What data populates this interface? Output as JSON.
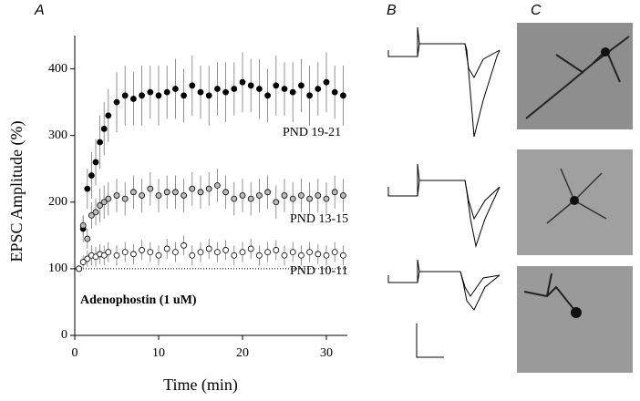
{
  "chart_data": {
    "type": "scatter",
    "panel_labels": [
      "A",
      "B",
      "C"
    ],
    "x_label": "Time (min)",
    "y_label": "EPSC Amplitude (%)",
    "annotations": [
      "PND 19-21",
      "PND 13-15",
      "PND 10-11",
      "Adenophostin (1 uM)"
    ],
    "x": [
      0.5,
      1,
      1.5,
      2,
      2.5,
      3,
      3.5,
      4,
      5,
      6,
      7,
      8,
      9,
      10,
      11,
      12,
      13,
      14,
      15,
      16,
      17,
      18,
      19,
      20,
      21,
      22,
      23,
      24,
      25,
      26,
      27,
      28,
      29,
      30,
      31,
      32
    ],
    "series": [
      {
        "name": "PND 19-21",
        "color": "#000000",
        "values": [
          100,
          160,
          220,
          240,
          260,
          290,
          310,
          330,
          350,
          360,
          355,
          360,
          365,
          360,
          365,
          370,
          360,
          375,
          365,
          360,
          370,
          365,
          370,
          380,
          375,
          370,
          360,
          375,
          370,
          365,
          375,
          360,
          370,
          380,
          365,
          360
        ],
        "errors": [
          5,
          20,
          30,
          35,
          35,
          40,
          40,
          40,
          45,
          45,
          40,
          45,
          40,
          45,
          40,
          45,
          40,
          45,
          40,
          45,
          40,
          45,
          40,
          45,
          40,
          45,
          40,
          45,
          40,
          45,
          40,
          45,
          40,
          45,
          40,
          45
        ]
      },
      {
        "name": "PND 13-15",
        "color": "#bbbbbb",
        "values": [
          100,
          165,
          145,
          180,
          185,
          195,
          200,
          205,
          210,
          205,
          215,
          210,
          220,
          210,
          215,
          215,
          210,
          220,
          215,
          220,
          225,
          215,
          205,
          210,
          205,
          210,
          215,
          200,
          210,
          205,
          210,
          205,
          210,
          205,
          215,
          210
        ],
        "errors": [
          5,
          15,
          15,
          20,
          20,
          25,
          25,
          25,
          25,
          25,
          25,
          25,
          25,
          25,
          25,
          25,
          25,
          25,
          25,
          25,
          25,
          25,
          25,
          25,
          25,
          25,
          25,
          25,
          25,
          25,
          25,
          25,
          25,
          25,
          25,
          25
        ]
      },
      {
        "name": "PND 10-11",
        "color": "#ffffff",
        "values": [
          100,
          110,
          115,
          120,
          118,
          122,
          120,
          125,
          120,
          125,
          122,
          128,
          125,
          120,
          130,
          125,
          135,
          120,
          125,
          130,
          125,
          128,
          120,
          125,
          130,
          120,
          125,
          128,
          120,
          125,
          120,
          125,
          122,
          120,
          125,
          120
        ],
        "errors": [
          5,
          10,
          12,
          15,
          15,
          15,
          15,
          15,
          15,
          15,
          15,
          15,
          15,
          15,
          15,
          15,
          15,
          15,
          15,
          15,
          15,
          15,
          15,
          15,
          15,
          15,
          15,
          15,
          15,
          15,
          15,
          15,
          15,
          15,
          15,
          15
        ]
      }
    ],
    "reference_line": 100,
    "xlim": [
      0,
      32.5
    ],
    "ylim": [
      0,
      450
    ],
    "xticks": [
      0,
      10,
      20,
      30
    ],
    "yticks": [
      0,
      100,
      200,
      300,
      400
    ]
  }
}
